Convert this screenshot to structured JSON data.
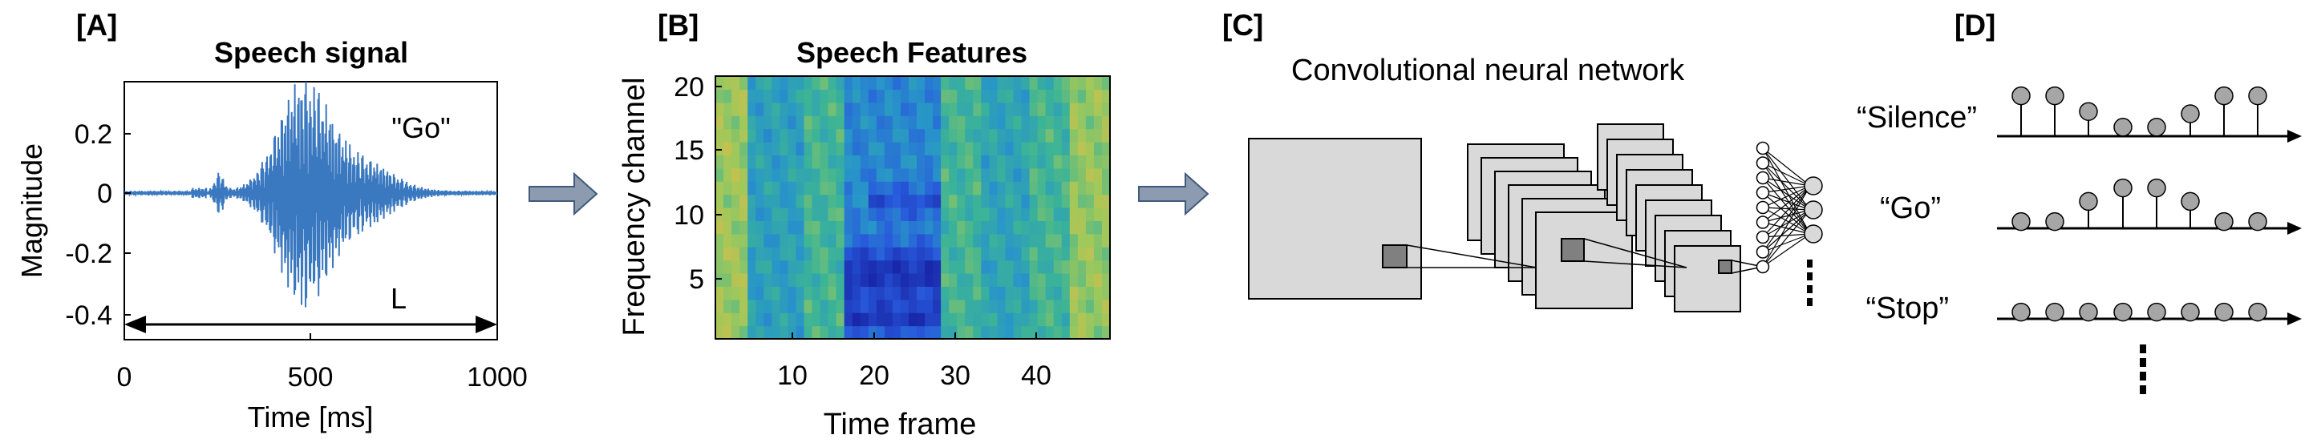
{
  "panels": {
    "a": {
      "label": "[A]",
      "title": "Speech signal",
      "ylabel": "Magnitude",
      "xlabel": "Time [ms]",
      "annotation": "\"Go\"",
      "length_label": "L",
      "yticks": [
        "0.2",
        "0",
        "-0.2",
        "-0.4"
      ],
      "xticks": [
        "0",
        "500",
        "1000"
      ],
      "signal_color": "#3a78c0"
    },
    "b": {
      "label": "[B]",
      "title": "Speech Features",
      "ylabel": "Frequency channel",
      "xlabel": "Time frame",
      "yticks": [
        "20",
        "15",
        "10",
        "5"
      ],
      "xticks": [
        "10",
        "20",
        "30",
        "40"
      ]
    },
    "c": {
      "label": "[C]",
      "title": "Convolutional neural network"
    },
    "d": {
      "label": "[D]",
      "rows": [
        {
          "label": "“Silence”",
          "heights": [
            0.9,
            0.9,
            0.55,
            0.2,
            0.2,
            0.5,
            0.9,
            0.9
          ]
        },
        {
          "label": "“Go”",
          "heights": [
            0.15,
            0.15,
            0.6,
            0.9,
            0.9,
            0.6,
            0.15,
            0.15
          ]
        },
        {
          "label": "“Stop”",
          "heights": [
            0.15,
            0.15,
            0.15,
            0.15,
            0.15,
            0.15,
            0.15,
            0.15
          ]
        }
      ]
    }
  },
  "colors": {
    "arrow_fill": "#8c9bb0",
    "arrow_stroke": "#41597a",
    "box_fill": "#d9d9d9",
    "lollipop_fill": "#a6a6a6"
  }
}
